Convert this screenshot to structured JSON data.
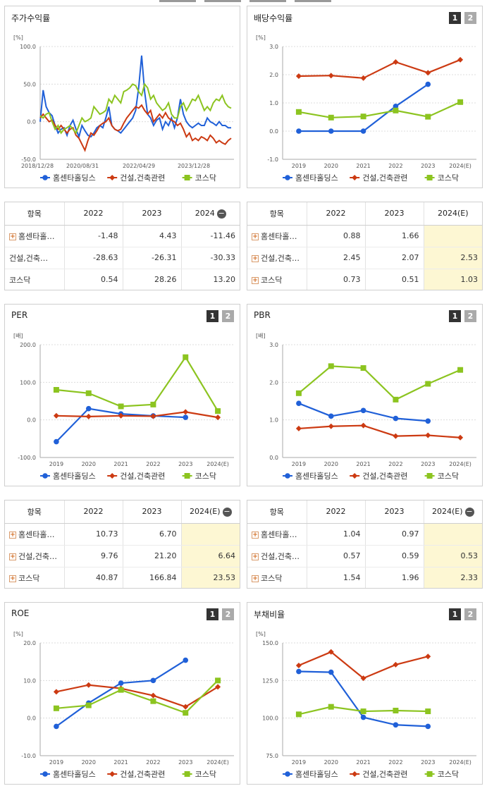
{
  "legend_names": [
    "홈센타홀딩스",
    "건설,건축관련",
    "코스닥"
  ],
  "colors": {
    "home": "#2060d8",
    "const": "#cc3a12",
    "kosdaq": "#8cc420"
  },
  "pager": [
    "1",
    "2"
  ],
  "panels": {
    "stock": {
      "title": "주가수익률"
    },
    "dividend": {
      "title": "배당수익률"
    },
    "per": {
      "title": "PER"
    },
    "pbr": {
      "title": "PBR"
    },
    "roe": {
      "title": "ROE"
    },
    "debt": {
      "title": "부채비율"
    }
  },
  "tables": {
    "stock": {
      "headers": [
        "항목",
        "2022",
        "2023",
        "2024"
      ],
      "rows": [
        {
          "name": "홈센타홀…",
          "vals": [
            "-1.48",
            "4.43",
            "-11.46"
          ]
        },
        {
          "name": "건설,건축…",
          "vals": [
            "-28.63",
            "-26.31",
            "-30.33"
          ]
        },
        {
          "name": "코스닥",
          "vals": [
            "0.54",
            "28.26",
            "13.20"
          ]
        }
      ]
    },
    "dividend": {
      "headers": [
        "항목",
        "2022",
        "2023",
        "2024(E)"
      ],
      "rows": [
        {
          "name": "홈센타홀…",
          "vals": [
            "0.88",
            "1.66",
            ""
          ]
        },
        {
          "name": "건설,건축…",
          "vals": [
            "2.45",
            "2.07",
            "2.53"
          ]
        },
        {
          "name": "코스닥",
          "vals": [
            "0.73",
            "0.51",
            "1.03"
          ]
        }
      ]
    },
    "per": {
      "headers": [
        "항목",
        "2022",
        "2023",
        "2024(E)"
      ],
      "rows": [
        {
          "name": "홈센타홀…",
          "vals": [
            "10.73",
            "6.70",
            ""
          ]
        },
        {
          "name": "건설,건축…",
          "vals": [
            "9.76",
            "21.20",
            "6.64"
          ]
        },
        {
          "name": "코스닥",
          "vals": [
            "40.87",
            "166.84",
            "23.53"
          ]
        }
      ]
    },
    "pbr": {
      "headers": [
        "항목",
        "2022",
        "2023",
        "2024(E)"
      ],
      "rows": [
        {
          "name": "홈센타홀…",
          "vals": [
            "1.04",
            "0.97",
            ""
          ]
        },
        {
          "name": "건설,건축…",
          "vals": [
            "0.57",
            "0.59",
            "0.53"
          ]
        },
        {
          "name": "코스닥",
          "vals": [
            "1.54",
            "1.96",
            "2.33"
          ]
        }
      ]
    }
  },
  "chart_data": [
    {
      "id": "stock",
      "type": "line",
      "unit": "[%]",
      "x_ticks": [
        "2018/12/28",
        "2020/08/31",
        "2022/04/29",
        "2023/12/28"
      ],
      "ylim": [
        -50,
        100
      ],
      "y_ticks": [
        "100.0",
        "50.0",
        "0.0",
        "-50.0"
      ],
      "series": [
        {
          "name": "홈센타홀딩스",
          "values": [
            0,
            42,
            20,
            12,
            8,
            -5,
            -15,
            -10,
            -8,
            -18,
            -5,
            2,
            -10,
            -20,
            -5,
            -12,
            -18,
            -20,
            -15,
            -8,
            -5,
            -8,
            5,
            20,
            -5,
            -10,
            -12,
            -15,
            -10,
            -5,
            0,
            5,
            15,
            45,
            88,
            40,
            10,
            5,
            -5,
            2,
            5,
            -10,
            0,
            -5,
            5,
            -8,
            5,
            30,
            10,
            0,
            -5,
            -8,
            -5,
            -2,
            -5,
            -5,
            5,
            0,
            -2,
            -5,
            0,
            -5,
            -5,
            -8,
            -8
          ]
        },
        {
          "name": "건설,건축관련",
          "values": [
            5,
            10,
            5,
            0,
            2,
            -5,
            -10,
            -5,
            -10,
            -15,
            -10,
            -8,
            -18,
            -22,
            -30,
            -38,
            -25,
            -15,
            -18,
            -12,
            -5,
            -2,
            0,
            5,
            -5,
            -10,
            -12,
            -10,
            -2,
            5,
            10,
            15,
            20,
            18,
            22,
            15,
            10,
            15,
            0,
            5,
            10,
            5,
            12,
            5,
            2,
            0,
            -5,
            -2,
            -10,
            -20,
            -15,
            -25,
            -22,
            -25,
            -20,
            -22,
            -25,
            -18,
            -22,
            -28,
            -25,
            -28,
            -30,
            -25,
            -22
          ]
        },
        {
          "name": "코스닥",
          "values": [
            8,
            5,
            10,
            12,
            0,
            -10,
            -5,
            -15,
            -10,
            -8,
            -5,
            -10,
            -15,
            -5,
            5,
            0,
            2,
            5,
            20,
            15,
            10,
            12,
            15,
            30,
            25,
            35,
            30,
            25,
            40,
            42,
            45,
            50,
            48,
            40,
            35,
            50,
            45,
            30,
            35,
            25,
            20,
            15,
            18,
            25,
            10,
            5,
            5,
            20,
            25,
            15,
            22,
            30,
            28,
            35,
            25,
            15,
            20,
            15,
            25,
            30,
            28,
            35,
            25,
            20,
            18
          ]
        }
      ]
    },
    {
      "id": "dividend",
      "type": "line",
      "unit": "[%]",
      "categories": [
        "2019",
        "2020",
        "2021",
        "2022",
        "2023",
        "2024(E)"
      ],
      "ylim": [
        -1,
        3
      ],
      "y_ticks": [
        "3.0",
        "2.0",
        "1.0",
        "0.0",
        "-1.0"
      ],
      "series": [
        {
          "name": "홈센타홀딩스",
          "values": [
            0.0,
            0.0,
            0.0,
            0.88,
            1.66,
            null
          ]
        },
        {
          "name": "건설,건축관련",
          "values": [
            1.95,
            1.97,
            1.88,
            2.45,
            2.07,
            2.53
          ]
        },
        {
          "name": "코스닥",
          "values": [
            0.68,
            0.48,
            0.52,
            0.73,
            0.51,
            1.03
          ]
        }
      ]
    },
    {
      "id": "per",
      "type": "line",
      "unit": "[배]",
      "categories": [
        "2019",
        "2020",
        "2021",
        "2022",
        "2023",
        "2024(E)"
      ],
      "ylim": [
        -100,
        200
      ],
      "y_ticks": [
        "200.0",
        "100.0",
        "0.0",
        "-100.0"
      ],
      "series": [
        {
          "name": "홈센타홀딩스",
          "values": [
            -58,
            30,
            16,
            10.73,
            6.7,
            null
          ]
        },
        {
          "name": "건설,건축관련",
          "values": [
            11,
            9,
            11,
            9.76,
            21.2,
            6.64
          ]
        },
        {
          "name": "코스닥",
          "values": [
            80,
            71,
            36,
            40.87,
            166.84,
            23.53
          ]
        }
      ]
    },
    {
      "id": "pbr",
      "type": "line",
      "unit": "[배]",
      "categories": [
        "2019",
        "2020",
        "2021",
        "2022",
        "2023",
        "2024(E)"
      ],
      "ylim": [
        0,
        3
      ],
      "y_ticks": [
        "3.0",
        "2.0",
        "1.0",
        "0.0"
      ],
      "series": [
        {
          "name": "홈센타홀딩스",
          "values": [
            1.44,
            1.1,
            1.25,
            1.04,
            0.97,
            null
          ]
        },
        {
          "name": "건설,건축관련",
          "values": [
            0.77,
            0.83,
            0.85,
            0.57,
            0.59,
            0.53
          ]
        },
        {
          "name": "코스닥",
          "values": [
            1.71,
            2.43,
            2.38,
            1.54,
            1.96,
            2.33
          ]
        }
      ]
    },
    {
      "id": "roe",
      "type": "line",
      "unit": "[%]",
      "categories": [
        "2019",
        "2020",
        "2021",
        "2022",
        "2023",
        "2024(E)"
      ],
      "ylim": [
        -10,
        20
      ],
      "y_ticks": [
        "20.0",
        "10.0",
        "0.0",
        "-10.0"
      ],
      "series": [
        {
          "name": "홈센타홀딩스",
          "values": [
            -2.2,
            4.0,
            9.3,
            10.0,
            15.4,
            null
          ]
        },
        {
          "name": "건설,건축관련",
          "values": [
            7.0,
            8.8,
            7.9,
            6.0,
            3.0,
            8.3
          ]
        },
        {
          "name": "코스닥",
          "values": [
            2.6,
            3.4,
            7.5,
            4.5,
            1.4,
            10.0
          ]
        }
      ]
    },
    {
      "id": "debt",
      "type": "line",
      "unit": "[%]",
      "categories": [
        "2019",
        "2020",
        "2021",
        "2022",
        "2023",
        "2024(E)"
      ],
      "ylim": [
        75,
        150
      ],
      "y_ticks": [
        "150.0",
        "125.0",
        "100.0",
        "75.0"
      ],
      "series": [
        {
          "name": "홈센타홀딩스",
          "values": [
            131,
            130.5,
            100.5,
            95.5,
            94.5,
            null
          ]
        },
        {
          "name": "건설,건축관련",
          "values": [
            135,
            144,
            126.5,
            135.5,
            141,
            null
          ]
        },
        {
          "name": "코스닥",
          "values": [
            102.5,
            107.5,
            104.5,
            105,
            104.5,
            null
          ]
        }
      ]
    }
  ]
}
